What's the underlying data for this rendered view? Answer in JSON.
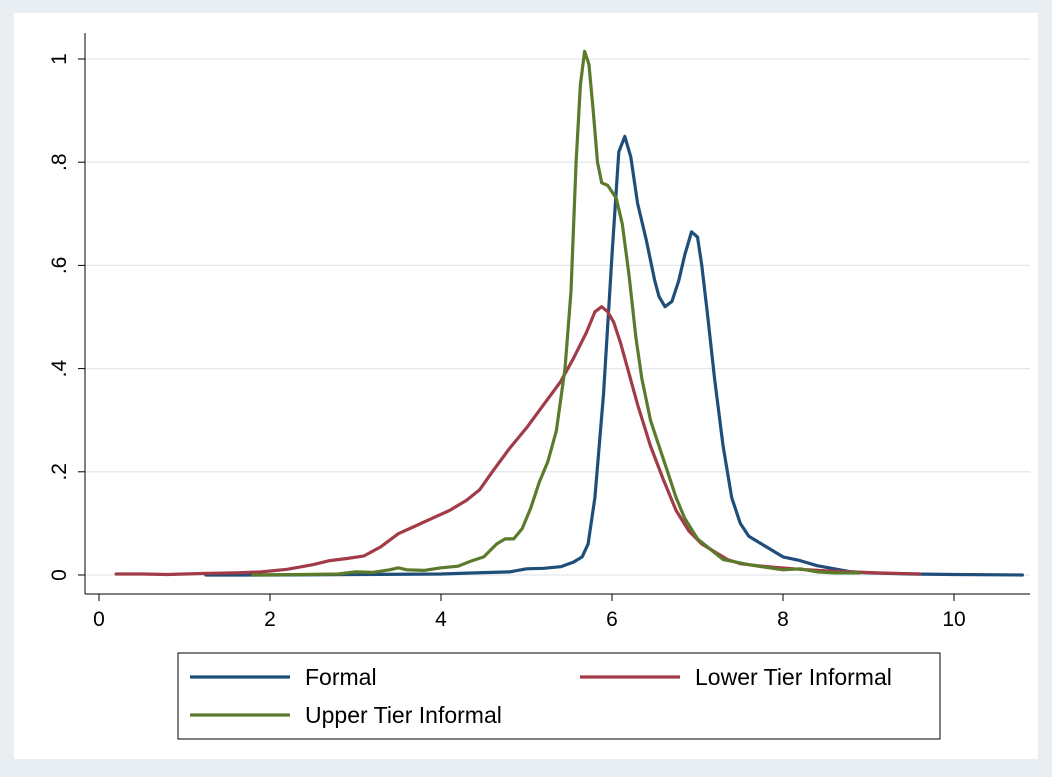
{
  "chart_data": {
    "type": "line",
    "title": "",
    "xlabel": "",
    "ylabel": "",
    "xlim": [
      0,
      10.8
    ],
    "ylim": [
      0,
      1.05
    ],
    "x_ticks": [
      {
        "value": 0,
        "label": "0"
      },
      {
        "value": 2,
        "label": "2"
      },
      {
        "value": 4,
        "label": "4"
      },
      {
        "value": 6,
        "label": "6"
      },
      {
        "value": 8,
        "label": "8"
      },
      {
        "value": 10,
        "label": "10"
      }
    ],
    "y_ticks": [
      {
        "value": 0,
        "label": "0"
      },
      {
        "value": 0.2,
        "label": ".2"
      },
      {
        "value": 0.4,
        "label": ".4"
      },
      {
        "value": 0.6,
        "label": ".6"
      },
      {
        "value": 0.8,
        "label": ".8"
      },
      {
        "value": 1,
        "label": "1"
      }
    ],
    "grid": true,
    "legend_position": "bottom",
    "series": [
      {
        "name": "Formal",
        "color": "#1f4e79",
        "points": [
          [
            1.25,
            0.0
          ],
          [
            2.0,
            0.0
          ],
          [
            3.0,
            0.001
          ],
          [
            4.0,
            0.002
          ],
          [
            4.4,
            0.004
          ],
          [
            4.8,
            0.006
          ],
          [
            5.0,
            0.012
          ],
          [
            5.2,
            0.013
          ],
          [
            5.4,
            0.016
          ],
          [
            5.55,
            0.025
          ],
          [
            5.65,
            0.035
          ],
          [
            5.72,
            0.06
          ],
          [
            5.8,
            0.15
          ],
          [
            5.9,
            0.35
          ],
          [
            6.0,
            0.62
          ],
          [
            6.08,
            0.82
          ],
          [
            6.15,
            0.85
          ],
          [
            6.22,
            0.81
          ],
          [
            6.3,
            0.72
          ],
          [
            6.4,
            0.65
          ],
          [
            6.5,
            0.57
          ],
          [
            6.55,
            0.54
          ],
          [
            6.62,
            0.52
          ],
          [
            6.7,
            0.53
          ],
          [
            6.78,
            0.57
          ],
          [
            6.85,
            0.62
          ],
          [
            6.93,
            0.665
          ],
          [
            7.0,
            0.655
          ],
          [
            7.05,
            0.6
          ],
          [
            7.12,
            0.5
          ],
          [
            7.2,
            0.38
          ],
          [
            7.3,
            0.25
          ],
          [
            7.4,
            0.15
          ],
          [
            7.5,
            0.1
          ],
          [
            7.6,
            0.075
          ],
          [
            7.75,
            0.06
          ],
          [
            7.9,
            0.045
          ],
          [
            8.0,
            0.035
          ],
          [
            8.2,
            0.028
          ],
          [
            8.4,
            0.018
          ],
          [
            8.6,
            0.012
          ],
          [
            8.8,
            0.006
          ],
          [
            9.0,
            0.004
          ],
          [
            9.5,
            0.002
          ],
          [
            10.0,
            0.001
          ],
          [
            10.8,
            0.0
          ]
        ]
      },
      {
        "name": "Lower Tier Informal",
        "color": "#a13b47",
        "points": [
          [
            0.2,
            0.002
          ],
          [
            0.5,
            0.002
          ],
          [
            0.8,
            0.001
          ],
          [
            1.2,
            0.003
          ],
          [
            1.6,
            0.004
          ],
          [
            1.9,
            0.006
          ],
          [
            2.2,
            0.011
          ],
          [
            2.5,
            0.02
          ],
          [
            2.7,
            0.028
          ],
          [
            2.9,
            0.032
          ],
          [
            3.1,
            0.037
          ],
          [
            3.3,
            0.055
          ],
          [
            3.5,
            0.08
          ],
          [
            3.7,
            0.095
          ],
          [
            3.9,
            0.11
          ],
          [
            4.1,
            0.125
          ],
          [
            4.3,
            0.145
          ],
          [
            4.45,
            0.165
          ],
          [
            4.6,
            0.2
          ],
          [
            4.8,
            0.245
          ],
          [
            5.0,
            0.285
          ],
          [
            5.2,
            0.33
          ],
          [
            5.4,
            0.375
          ],
          [
            5.55,
            0.42
          ],
          [
            5.7,
            0.47
          ],
          [
            5.8,
            0.51
          ],
          [
            5.88,
            0.52
          ],
          [
            5.95,
            0.51
          ],
          [
            6.02,
            0.49
          ],
          [
            6.1,
            0.45
          ],
          [
            6.2,
            0.39
          ],
          [
            6.3,
            0.33
          ],
          [
            6.45,
            0.25
          ],
          [
            6.6,
            0.185
          ],
          [
            6.75,
            0.125
          ],
          [
            6.9,
            0.085
          ],
          [
            7.05,
            0.06
          ],
          [
            7.2,
            0.045
          ],
          [
            7.35,
            0.03
          ],
          [
            7.5,
            0.022
          ],
          [
            7.7,
            0.018
          ],
          [
            7.9,
            0.015
          ],
          [
            8.2,
            0.011
          ],
          [
            8.5,
            0.008
          ],
          [
            8.8,
            0.006
          ],
          [
            9.1,
            0.004
          ],
          [
            9.6,
            0.002
          ]
        ]
      },
      {
        "name": "Upper Tier Informal",
        "color": "#5b7a2c",
        "points": [
          [
            1.8,
            0.0
          ],
          [
            2.4,
            0.001
          ],
          [
            2.8,
            0.002
          ],
          [
            3.0,
            0.006
          ],
          [
            3.2,
            0.005
          ],
          [
            3.4,
            0.01
          ],
          [
            3.5,
            0.014
          ],
          [
            3.6,
            0.01
          ],
          [
            3.8,
            0.009
          ],
          [
            4.0,
            0.014
          ],
          [
            4.2,
            0.017
          ],
          [
            4.35,
            0.027
          ],
          [
            4.5,
            0.035
          ],
          [
            4.65,
            0.06
          ],
          [
            4.75,
            0.07
          ],
          [
            4.85,
            0.07
          ],
          [
            4.95,
            0.09
          ],
          [
            5.05,
            0.13
          ],
          [
            5.15,
            0.18
          ],
          [
            5.25,
            0.22
          ],
          [
            5.35,
            0.28
          ],
          [
            5.45,
            0.4
          ],
          [
            5.52,
            0.55
          ],
          [
            5.58,
            0.8
          ],
          [
            5.63,
            0.95
          ],
          [
            5.68,
            1.015
          ],
          [
            5.73,
            0.99
          ],
          [
            5.78,
            0.9
          ],
          [
            5.83,
            0.8
          ],
          [
            5.88,
            0.76
          ],
          [
            5.95,
            0.755
          ],
          [
            6.05,
            0.73
          ],
          [
            6.12,
            0.68
          ],
          [
            6.2,
            0.58
          ],
          [
            6.28,
            0.46
          ],
          [
            6.35,
            0.38
          ],
          [
            6.45,
            0.3
          ],
          [
            6.55,
            0.25
          ],
          [
            6.65,
            0.2
          ],
          [
            6.75,
            0.15
          ],
          [
            6.85,
            0.11
          ],
          [
            7.0,
            0.07
          ],
          [
            7.15,
            0.05
          ],
          [
            7.3,
            0.03
          ],
          [
            7.45,
            0.025
          ],
          [
            7.6,
            0.02
          ],
          [
            7.8,
            0.015
          ],
          [
            8.0,
            0.01
          ],
          [
            8.2,
            0.012
          ],
          [
            8.4,
            0.006
          ],
          [
            8.6,
            0.004
          ],
          [
            8.9,
            0.004
          ]
        ]
      }
    ]
  }
}
